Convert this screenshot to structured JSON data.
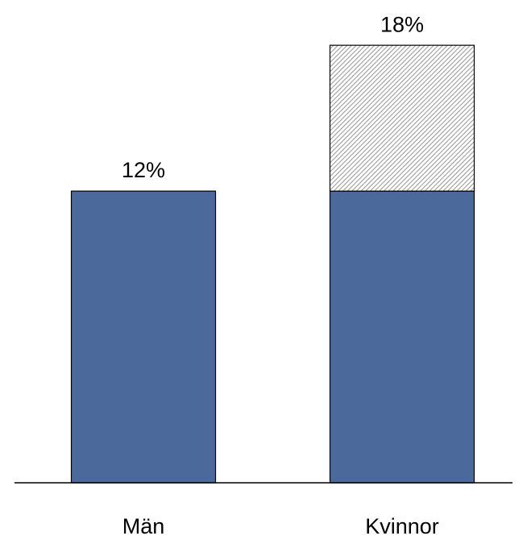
{
  "chart_data": {
    "type": "stacked_bar",
    "categories": [
      "Män",
      "Kvinnor"
    ],
    "series": [
      {
        "color": "#4b6a9b",
        "values": [
          12,
          12
        ]
      },
      {
        "color": "#7a7a7a",
        "pattern": "hatch",
        "values": [
          null,
          6
        ]
      }
    ],
    "total_labels": [
      "12%",
      "18%"
    ],
    "ylim": [
      0,
      19
    ]
  }
}
